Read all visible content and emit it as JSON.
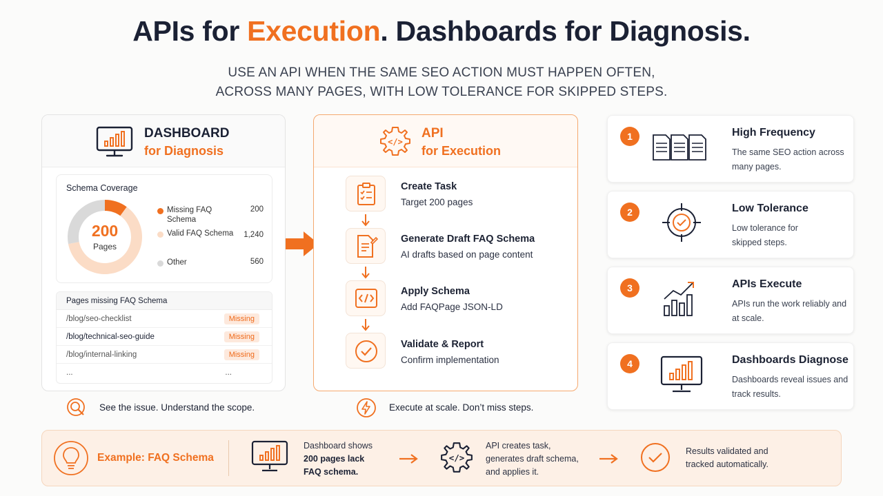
{
  "title": {
    "part1": "APIs for ",
    "highlight": "Execution",
    "part2": ". Dashboards for Diagnosis."
  },
  "subtitle": {
    "line1": "USE AN API WHEN THE SAME SEO ACTION MUST HAPPEN OFTEN,",
    "line2": "ACROSS MANY PAGES, WITH LOW TOLERANCE FOR SKIPPED STEPS."
  },
  "colors": {
    "accent": "#f07020",
    "dark": "#1b2134",
    "badge_bg": "#fde9dd"
  },
  "dashboard": {
    "title": "DASHBOARD",
    "subtitle": "for Diagnosis",
    "icon": "monitor-chart-icon",
    "coverage": {
      "title": "Schema Coverage",
      "center_value": "200",
      "center_label": "Pages",
      "legend": [
        {
          "label": "Missing FAQ Schema",
          "value": "200",
          "color": "#f07020",
          "numeric": 200
        },
        {
          "label": "Valid FAQ Schema",
          "value": "1,240",
          "color": "#fbdcc6",
          "numeric": 1240
        },
        {
          "label": "Other",
          "value": "560",
          "color": "#d9d9d9",
          "numeric": 560
        }
      ]
    },
    "missing_table": {
      "header": "Pages missing FAQ Schema",
      "rows": [
        {
          "path": "/blog/seo-checklist",
          "status": "Missing"
        },
        {
          "path": "/blog/technical-seo-guide",
          "status": "Missing"
        },
        {
          "path": "/blog/internal-linking",
          "status": "Missing"
        },
        {
          "path": "...",
          "status": "..."
        }
      ]
    },
    "caption": "See the issue. Understand the scope."
  },
  "api": {
    "title": "API",
    "subtitle": "for Execution",
    "icon": "gear-code-icon",
    "steps": [
      {
        "title": "Create Task",
        "desc": "Target 200 pages",
        "icon": "clipboard-checklist-icon"
      },
      {
        "title": "Generate Draft FAQ Schema",
        "desc": "AI drafts based on page content",
        "icon": "document-edit-icon"
      },
      {
        "title": "Apply Schema",
        "desc": "Add FAQPage JSON-LD",
        "icon": "code-icon"
      },
      {
        "title": "Validate & Report",
        "desc": "Confirm implementation",
        "icon": "check-circle-icon"
      }
    ],
    "caption": "Execute at scale. Don’t miss steps."
  },
  "reasons": [
    {
      "num": "1",
      "title": "High Frequency",
      "desc": "The same SEO action across many pages.",
      "icon": "documents-icon"
    },
    {
      "num": "2",
      "title": "Low Tolerance",
      "desc": "Low tolerance for skipped steps.",
      "icon": "target-check-icon"
    },
    {
      "num": "3",
      "title": "APIs Execute",
      "desc": "APIs run the work reliably and at scale.",
      "icon": "growth-chart-icon"
    },
    {
      "num": "4",
      "title": "Dashboards Diagnose",
      "desc": "Dashboards reveal issues and track results.",
      "icon": "monitor-chart-icon"
    }
  ],
  "example": {
    "label": "Example: FAQ Schema",
    "step1": {
      "line1": "Dashboard shows",
      "line2": "200 pages lack",
      "line3": "FAQ schema."
    },
    "step2": {
      "line1": "API creates task,",
      "line2": "generates draft schema,",
      "line3": "and applies it."
    },
    "step3": {
      "line1": "Results validated and",
      "line2": "tracked automatically."
    }
  }
}
